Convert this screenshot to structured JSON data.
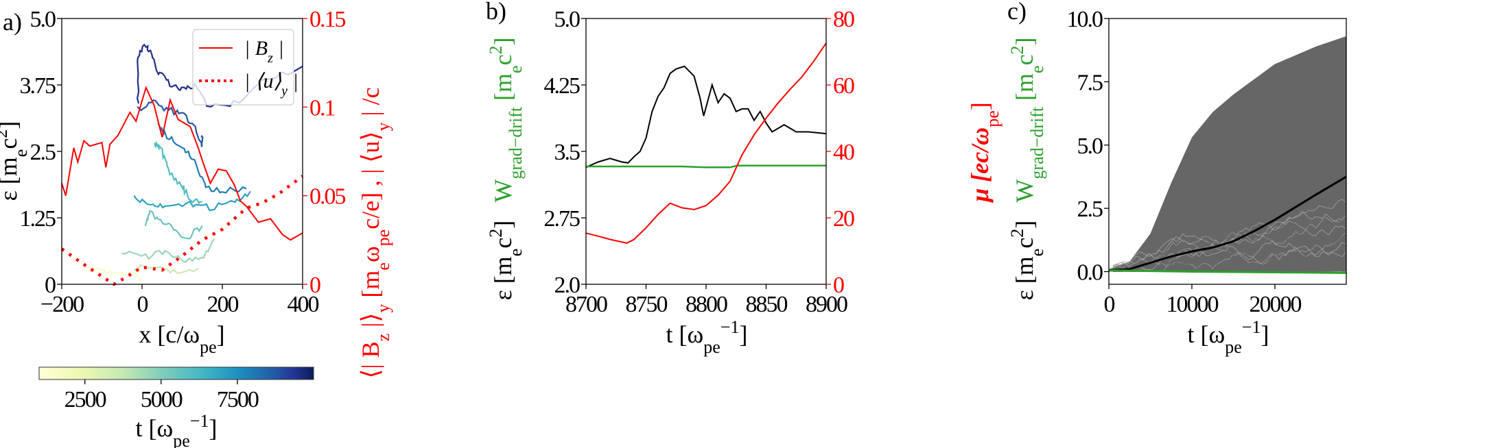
{
  "panels": {
    "a": {
      "letter": "a)",
      "xlabel": {
        "pre": "x [c/ω",
        "sub": "pe",
        "post": "]"
      },
      "ylabel": {
        "pre": "ε [m",
        "sub": "e",
        "mid": "c",
        "sup": "2",
        "post": "]"
      },
      "y2label": {
        "p1": "⟨| B",
        "s1": "z",
        "p2": " |⟩",
        "s2": "y",
        "p3": " [m",
        "s3": "e",
        "p4": "ω",
        "s4": "pe",
        "p5": "c/e] , | ⟨u⟩",
        "s5": "y",
        "p6": " | /c"
      },
      "xticks": [
        "−200",
        "0",
        "200",
        "400"
      ],
      "yticks": [
        "0",
        "1.25",
        "2.5",
        "3.75",
        "5.0"
      ],
      "y2ticks": [
        "0",
        "0.05",
        "0.1",
        "0.15"
      ],
      "legend": [
        {
          "pre": "| B",
          "sub": "z",
          "post": " |",
          "style": "solid"
        },
        {
          "pre": "| ⟨u⟩",
          "sub": "y",
          "post": " |",
          "style": "dotted"
        }
      ],
      "colorbar": {
        "ticks": [
          "2500",
          "5000",
          "7500"
        ],
        "label": {
          "pre": "t [ω",
          "sub": "pe",
          "sup": "−1",
          "post": "]"
        },
        "range": [
          1000,
          10000
        ],
        "colormap": "YlGnBu"
      }
    },
    "b": {
      "letter": "b)",
      "xlabel": {
        "pre": "t [ω",
        "sub": "pe",
        "sup": "−1",
        "post": "]"
      },
      "ylabel": {
        "pre": "ε [m",
        "sub": "e",
        "mid": "c",
        "sup": "2",
        "post": "]"
      },
      "ylabel_green": {
        "pre": "W",
        "sub": "grad−drift",
        "mid": " [m",
        "sub2": "e",
        "mid2": "c",
        "sup": "2",
        "post": "]"
      },
      "y2label": {
        "pre": "μ [ec/ω",
        "sub": "pe",
        "post": "]"
      },
      "xticks": [
        "8700",
        "8750",
        "8800",
        "8850",
        "8900"
      ],
      "yticks": [
        "2.0",
        "2.75",
        "3.5",
        "4.25",
        "5.0"
      ],
      "y2ticks": [
        "0",
        "20",
        "40",
        "60",
        "80"
      ]
    },
    "c": {
      "letter": "c)",
      "xlabel": {
        "pre": "t [ω",
        "sub": "pe",
        "sup": "−1",
        "post": "]"
      },
      "ylabel": {
        "pre": "ε [m",
        "sub": "e",
        "mid": "c",
        "sup": "2",
        "post": "]"
      },
      "ylabel_green": {
        "pre": "W",
        "sub": "grad−drift",
        "mid": " [m",
        "sub2": "e",
        "mid2": "c",
        "sup": "2",
        "post": "]"
      },
      "xticks": [
        "0",
        "10000",
        "20000"
      ],
      "yticks": [
        "0.0",
        "2.5",
        "5.0",
        "7.5",
        "10.0"
      ]
    }
  },
  "colors": {
    "red": "#ff0000",
    "green": "#2ca02c",
    "black": "#000000",
    "gray": "#555555"
  },
  "chart_data": [
    {
      "panel": "a",
      "type": "line",
      "xlim": [
        -200,
        400
      ],
      "ylim": [
        0,
        5
      ],
      "y2lim": [
        0,
        0.15
      ],
      "grid": false,
      "legend": "top-right",
      "series": [
        {
          "name": "| B_z |",
          "axis": "right",
          "style": "solid",
          "color": "#ff0000",
          "x": [
            -200,
            -190,
            -170,
            -160,
            -145,
            -130,
            -100,
            -90,
            -80,
            -60,
            -30,
            -15,
            10,
            30,
            50,
            70,
            90,
            120,
            140,
            150,
            170,
            190,
            210,
            230,
            245,
            260,
            290,
            320,
            350,
            370,
            400
          ],
          "y": [
            0.057,
            0.05,
            0.077,
            0.069,
            0.081,
            0.078,
            0.08,
            0.066,
            0.079,
            0.084,
            0.097,
            0.092,
            0.111,
            0.101,
            0.083,
            0.104,
            0.093,
            0.089,
            0.077,
            0.07,
            0.057,
            0.065,
            0.064,
            0.056,
            0.047,
            0.044,
            0.035,
            0.037,
            0.028,
            0.025,
            0.029
          ]
        },
        {
          "name": "| ⟨u⟩_y |",
          "axis": "right",
          "style": "dotted",
          "color": "#ff0000",
          "x": [
            -200,
            -150,
            -100,
            -70,
            -40,
            0,
            50,
            100,
            150,
            200,
            260,
            300,
            340,
            400
          ],
          "y": [
            0.02,
            0.012,
            0.0045,
            0.0,
            0.004,
            0.0097,
            0.008,
            0.016,
            0.025,
            0.031,
            0.043,
            0.046,
            0.051,
            0.061
          ]
        }
      ],
      "trajectories": [
        {
          "t": 9500,
          "x": [
            -10,
            -10,
            10,
            20,
            40,
            70,
            100,
            130,
            160,
            230,
            300,
            400
          ],
          "y": [
            3.35,
            4.3,
            4.5,
            4.4,
            4.0,
            3.75,
            3.65,
            3.75,
            3.4,
            3.4,
            3.8,
            4.1
          ]
        },
        {
          "t": 8800,
          "x": [
            -10,
            30,
            60,
            100,
            130,
            150,
            150
          ],
          "y": [
            3.3,
            3.45,
            3.3,
            3.2,
            3.0,
            2.6,
            2.8
          ]
        },
        {
          "t": 8000,
          "x": [
            40,
            60,
            100,
            130,
            160,
            200,
            260
          ],
          "y": [
            3.0,
            2.8,
            2.6,
            2.3,
            1.8,
            1.75,
            1.8
          ]
        },
        {
          "t": 7000,
          "x": [
            -20,
            20,
            60,
            120,
            170,
            230,
            270
          ],
          "y": [
            1.65,
            1.5,
            1.45,
            1.5,
            1.45,
            1.55,
            1.75
          ]
        },
        {
          "t": 6000,
          "x": [
            30,
            50,
            70,
            100,
            120,
            150
          ],
          "y": [
            2.65,
            2.5,
            2.1,
            1.85,
            1.6,
            1.55
          ]
        },
        {
          "t": 5500,
          "x": [
            10,
            20,
            40,
            80,
            110,
            150
          ],
          "y": [
            1.1,
            1.4,
            1.2,
            1.05,
            0.85,
            1.1
          ]
        },
        {
          "t": 4500,
          "x": [
            -50,
            0,
            50,
            100,
            150,
            180
          ],
          "y": [
            0.6,
            0.5,
            0.6,
            0.45,
            0.45,
            0.85
          ]
        },
        {
          "t": 3500,
          "x": [
            -20,
            30,
            80,
            140
          ],
          "y": [
            0.3,
            0.35,
            0.25,
            0.3
          ]
        },
        {
          "t": 1500,
          "x": [
            -150,
            -100,
            -60,
            -30,
            0
          ],
          "y": [
            0.3,
            0.25,
            0.25,
            0.2,
            0.1
          ]
        }
      ]
    },
    {
      "panel": "b",
      "type": "line",
      "xlim": [
        8700,
        8900
      ],
      "ylim": [
        2.0,
        5.0
      ],
      "y2lim": [
        0,
        80
      ],
      "grid": false,
      "series": [
        {
          "quantity": "ε",
          "axis": "left",
          "color": "#000000",
          "x": [
            8700,
            8710,
            8720,
            8730,
            8735,
            8740,
            8745,
            8750,
            8755,
            8760,
            8765,
            8770,
            8775,
            8782,
            8790,
            8795,
            8798,
            8805,
            8810,
            8815,
            8820,
            8825,
            8830,
            8835,
            8840,
            8845,
            8850,
            8855,
            8865,
            8875,
            8885,
            8900
          ],
          "y": [
            3.32,
            3.38,
            3.42,
            3.38,
            3.37,
            3.44,
            3.5,
            3.65,
            3.95,
            4.12,
            4.22,
            4.38,
            4.43,
            4.46,
            4.35,
            4.1,
            3.9,
            4.25,
            4.05,
            4.15,
            4.1,
            3.95,
            3.98,
            3.98,
            3.85,
            3.95,
            3.82,
            3.72,
            3.8,
            3.72,
            3.72,
            3.7
          ]
        },
        {
          "quantity": "W_grad−drift",
          "axis": "left",
          "color": "#2ca02c",
          "x": [
            8700,
            8780,
            8800,
            8820,
            8826,
            8900
          ],
          "y": [
            3.33,
            3.33,
            3.32,
            3.32,
            3.34,
            3.34
          ]
        },
        {
          "quantity": "μ",
          "axis": "right",
          "color": "#ff0000",
          "x": [
            8700,
            8710,
            8720,
            8734,
            8740,
            8750,
            8760,
            8770,
            8780,
            8790,
            8800,
            8810,
            8820,
            8830,
            8840,
            8850,
            8860,
            8870,
            8880,
            8890,
            8900
          ],
          "y": [
            15.4,
            14.5,
            13.5,
            12.4,
            13.5,
            17,
            21,
            24.4,
            23,
            22.5,
            23.7,
            26.8,
            31,
            39,
            45,
            50,
            54.6,
            58.7,
            62.5,
            67.3,
            72.6
          ]
        }
      ]
    },
    {
      "panel": "c",
      "type": "line",
      "xlim": [
        0,
        28600
      ],
      "ylim": [
        -0.5,
        10.0
      ],
      "grid": false,
      "series": [
        {
          "quantity": "ε mean",
          "color": "#000000",
          "x": [
            0,
            2500,
            5000,
            7500,
            10000,
            12500,
            15000,
            17500,
            20000,
            22500,
            25000,
            28600
          ],
          "y": [
            0.05,
            0.1,
            0.35,
            0.6,
            0.8,
            0.95,
            1.2,
            1.6,
            2.05,
            2.55,
            3.05,
            3.75
          ]
        },
        {
          "quantity": "W_grad−drift",
          "color": "#2ca02c",
          "x": [
            0,
            10000,
            28600
          ],
          "y": [
            0.05,
            0.0,
            -0.05
          ]
        }
      ],
      "ensemble": {
        "quantity": "ε individual particles",
        "color": "#555555",
        "x": [
          0,
          2500,
          5000,
          7500,
          10000,
          12500,
          15000,
          20000,
          25000,
          28600
        ],
        "upper": [
          0.1,
          0.4,
          1.5,
          3.5,
          5.3,
          6.3,
          7.0,
          8.2,
          8.9,
          9.3
        ],
        "lower": [
          0,
          0,
          0,
          0,
          0,
          0,
          0,
          0,
          0,
          0
        ]
      }
    }
  ]
}
